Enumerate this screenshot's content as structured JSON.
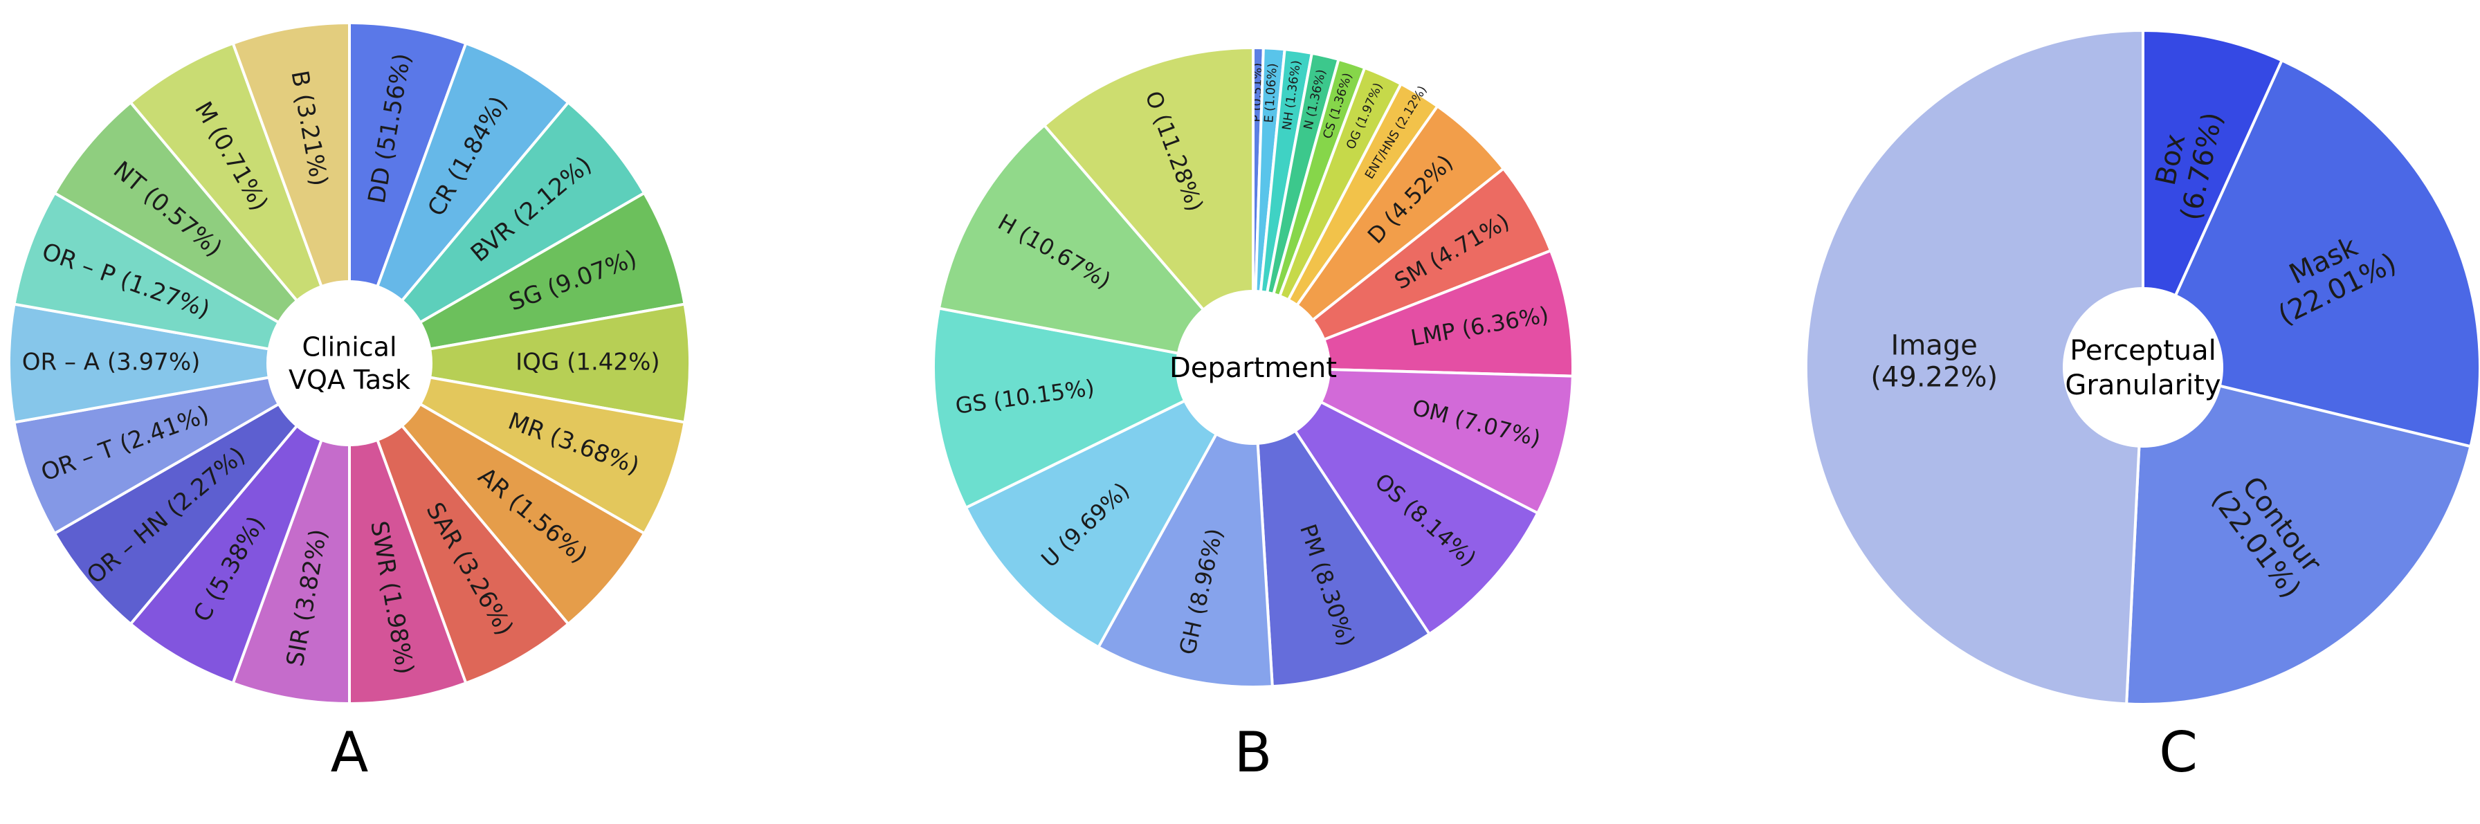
{
  "chart_data": [
    {
      "type": "pie",
      "panel_label": "A",
      "center_label": [
        "Clinical",
        "VQA Task"
      ],
      "start_angle_deg": 0,
      "direction": "clockwise",
      "equal_angles": true,
      "slices": [
        {
          "label": "DD",
          "value": 51.56,
          "text": "DD (51.56%)",
          "color": "#5a78e8"
        },
        {
          "label": "CR",
          "value": 1.84,
          "text": "CR (1.84%)",
          "color": "#66b8e8"
        },
        {
          "label": "BVR",
          "value": 2.12,
          "text": "BVR (2.12%)",
          "color": "#5dcfbb"
        },
        {
          "label": "SG",
          "value": 9.07,
          "text": "SG (9.07%)",
          "color": "#6cc05c"
        },
        {
          "label": "IQG",
          "value": 1.42,
          "text": "IQG (1.42%)",
          "color": "#b7cf55"
        },
        {
          "label": "MR",
          "value": 3.68,
          "text": "MR (3.68%)",
          "color": "#e3c75c"
        },
        {
          "label": "AR",
          "value": 1.56,
          "text": "AR (1.56%)",
          "color": "#e59d4a"
        },
        {
          "label": "SAR",
          "value": 3.26,
          "text": "SAR (3.26%)",
          "color": "#de6758"
        },
        {
          "label": "SWR",
          "value": 1.98,
          "text": "SWR (1.98%)",
          "color": "#d45498"
        },
        {
          "label": "SIR",
          "value": 3.82,
          "text": "SIR (3.82%)",
          "color": "#c56ccb"
        },
        {
          "label": "C",
          "value": 5.38,
          "text": "C (5.38%)",
          "color": "#8255de"
        },
        {
          "label": "OR – HN",
          "value": 2.27,
          "text": "OR – HN (2.27%)",
          "color": "#5d5fd0"
        },
        {
          "label": "OR – T",
          "value": 2.41,
          "text": "OR – T (2.41%)",
          "color": "#8498e6"
        },
        {
          "label": "OR – A",
          "value": 3.97,
          "text": "OR – A (3.97%)",
          "color": "#86c6ea"
        },
        {
          "label": "OR – P",
          "value": 1.27,
          "text": "OR – P (1.27%)",
          "color": "#78d9c6"
        },
        {
          "label": "NT",
          "value": 0.57,
          "text": "NT (0.57%)",
          "color": "#8fce7f"
        },
        {
          "label": "M",
          "value": 0.71,
          "text": "M (0.71%)",
          "color": "#c9dc73"
        },
        {
          "label": "B",
          "value": 3.21,
          "text": "B (3.21%)",
          "color": "#e3cd7e"
        }
      ]
    },
    {
      "type": "pie",
      "panel_label": "B",
      "center_label": [
        "Department"
      ],
      "start_angle_deg": 0,
      "direction": "clockwise",
      "equal_angles": false,
      "slices": [
        {
          "label": "P",
          "value": 0.51,
          "text": "P (0.51%)",
          "color": "#5b7fe3"
        },
        {
          "label": "E",
          "value": 1.06,
          "text": "E (1.06%)",
          "color": "#59c4ea"
        },
        {
          "label": "NH",
          "value": 1.36,
          "text": "NH (1.36%)",
          "color": "#3fd2c4"
        },
        {
          "label": "N",
          "value": 1.36,
          "text": "N (1.36%)",
          "color": "#3cc88c"
        },
        {
          "label": "CS",
          "value": 1.36,
          "text": "CS (1.36%)",
          "color": "#86d64a"
        },
        {
          "label": "OG",
          "value": 1.97,
          "text": "OG (1.97%)",
          "color": "#c6d94a"
        },
        {
          "label": "ENT/HNS",
          "value": 2.12,
          "text": "ENT/HNS (2.12%)",
          "color": "#f2c24a"
        },
        {
          "label": "D",
          "value": 4.52,
          "text": "D (4.52%)",
          "color": "#f29e4a"
        },
        {
          "label": "SM",
          "value": 4.71,
          "text": "SM (4.71%)",
          "color": "#ec6b62"
        },
        {
          "label": "LMP",
          "value": 6.36,
          "text": "LMP (6.36%)",
          "color": "#e44fa4"
        },
        {
          "label": "OM",
          "value": 7.07,
          "text": "OM (7.07%)",
          "color": "#d26ad8"
        },
        {
          "label": "OS",
          "value": 8.14,
          "text": "OS (8.14%)",
          "color": "#9160e8"
        },
        {
          "label": "PM",
          "value": 8.3,
          "text": "PM (8.30%)",
          "color": "#656ddb"
        },
        {
          "label": "GH",
          "value": 8.96,
          "text": "GH (8.96%)",
          "color": "#86a3ec"
        },
        {
          "label": "U",
          "value": 9.69,
          "text": "U (9.69%)",
          "color": "#80cfee"
        },
        {
          "label": "GS",
          "value": 10.15,
          "text": "GS (10.15%)",
          "color": "#6cdfcf"
        },
        {
          "label": "H",
          "value": 10.67,
          "text": "H (10.67%)",
          "color": "#91d98a"
        },
        {
          "label": "O",
          "value": 11.28,
          "text": "O (11.28%)",
          "color": "#cddd6f"
        }
      ]
    },
    {
      "type": "pie",
      "panel_label": "C",
      "center_label": [
        "Perceptual",
        "Granularity"
      ],
      "start_angle_deg": 0,
      "direction": "clockwise",
      "equal_angles": false,
      "slices": [
        {
          "label": "Box",
          "value": 6.76,
          "text": "Box (6.76%)",
          "color": "#3549e4"
        },
        {
          "label": "Mask",
          "value": 22.01,
          "text": "Mask (22.01%)",
          "color": "#4b68e6"
        },
        {
          "label": "Contour",
          "value": 22.01,
          "text": "Contour (22.01%)",
          "color": "#6b87e8"
        },
        {
          "label": "Image",
          "value": 49.22,
          "text": "Image (49.22%)",
          "color": "#aebbea"
        }
      ]
    }
  ]
}
